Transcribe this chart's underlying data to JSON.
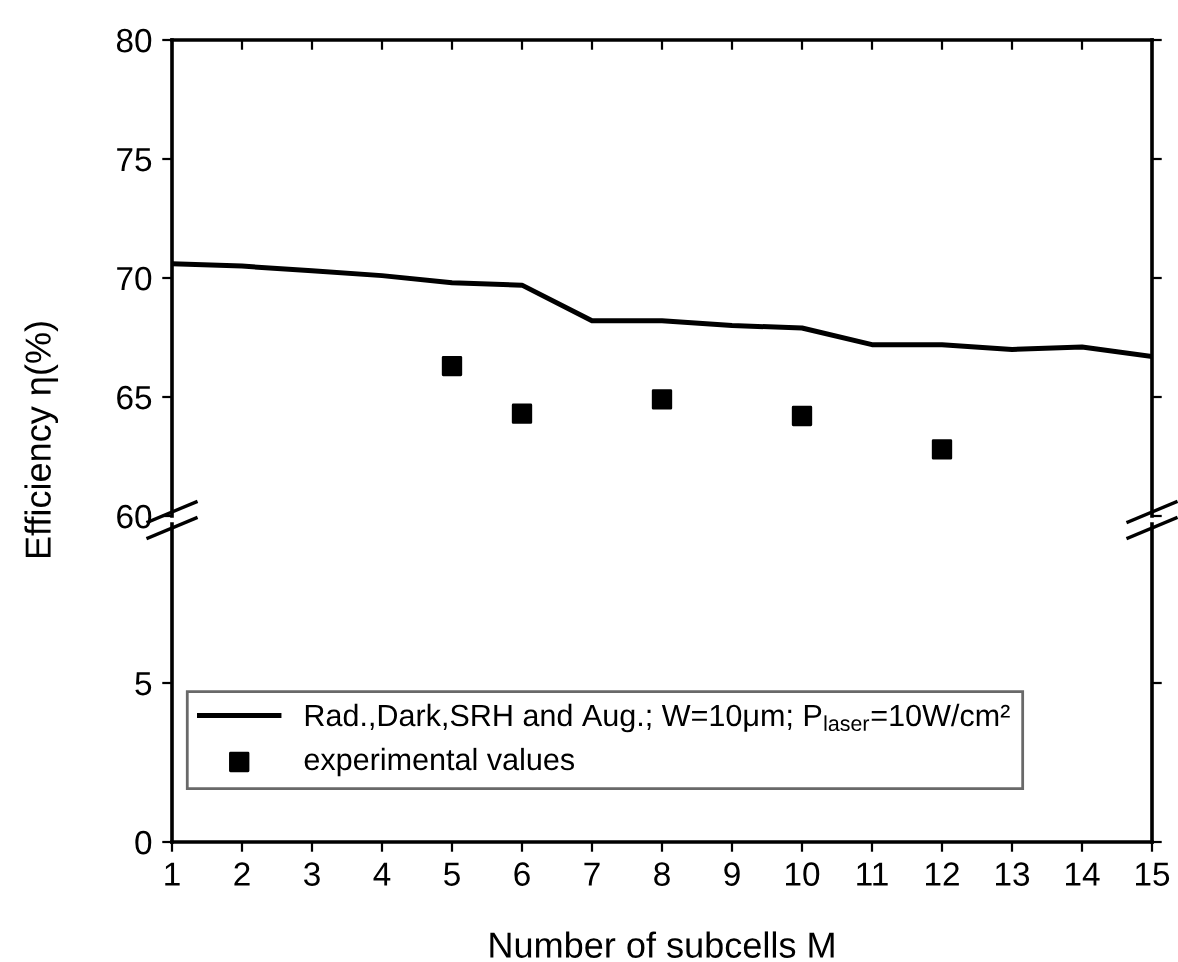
{
  "chart_data": [
    {
      "type": "line",
      "ylabel": "Efficiency η(%)",
      "xlim": [
        1,
        15
      ],
      "ylim": [
        60,
        80
      ],
      "yticks": [
        60,
        65,
        70,
        75,
        80
      ],
      "tick_labels": "y",
      "legend": "bottom left",
      "series": [
        {
          "name": "Rad.,Dark,SRH and Aug.; W=10μm; P$_{laser}$=10W/cm²",
          "color": "#000000",
          "marker": "none",
          "line_style": "solid",
          "x": [
            1,
            2,
            3,
            4,
            5,
            6,
            7,
            8,
            9,
            10,
            11,
            12,
            13,
            14,
            15
          ],
          "values": [
            70.6,
            70.5,
            70.3,
            70.1,
            69.8,
            69.7,
            68.2,
            68.2,
            68.0,
            67.9,
            67.2,
            67.2,
            67.0,
            67.1,
            66.7
          ]
        },
        {
          "name": "experimental values",
          "type": "scatter",
          "color": "#000000",
          "marker": "square",
          "x": [
            5,
            6,
            8,
            10,
            12
          ],
          "values": [
            66.3,
            64.3,
            64.9,
            64.2,
            62.8
          ]
        }
      ]
    },
    {
      "type": "line",
      "xlabel": "Number of subcells M",
      "xlim": [
        1,
        15
      ],
      "xticks": [
        1,
        2,
        3,
        4,
        5,
        6,
        7,
        8,
        9,
        10,
        11,
        12,
        13,
        14,
        15
      ],
      "ylim": [
        0,
        10
      ],
      "yticks": [
        0,
        5
      ]
    }
  ]
}
